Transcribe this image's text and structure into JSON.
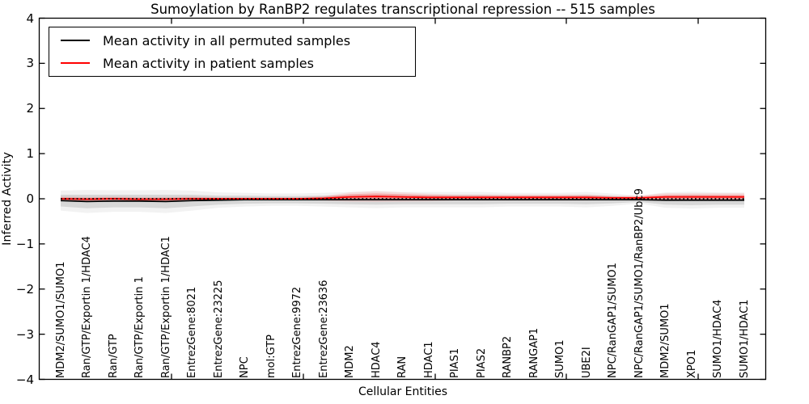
{
  "legend": {
    "entries": [
      {
        "label": "Mean activity in all permuted samples",
        "color": "#000000"
      },
      {
        "label": "Mean activity in patient samples",
        "color": "#ff0000"
      }
    ]
  },
  "chart_data": {
    "type": "line",
    "title": "Sumoylation by RanBP2 regulates transcriptional repression -- 515 samples",
    "xlabel": "Cellular Entities",
    "ylabel": "Inferred Activity",
    "ylim": [
      -4,
      4
    ],
    "y_ticks": [
      4,
      3,
      2,
      1,
      0,
      -1,
      -2,
      -3,
      -4
    ],
    "y_tick_labels": [
      "4",
      "3",
      "2",
      "1",
      "0",
      "−1",
      "−2",
      "−3",
      "−4"
    ],
    "grid": false,
    "legend_position": "upper left",
    "baseline": {
      "value": 0,
      "style": "dotted",
      "color": "#000000"
    },
    "categories": [
      "MDM2/SUMO1/SUMO1",
      "Ran/GTP/Exportin 1/HDAC4",
      "Ran/GTP",
      "Ran/GTP/Exportin 1",
      "Ran/GTP/Exportin 1/HDAC1",
      "EntrezGene:8021",
      "EntrezGene:23225",
      "NPC",
      "mol:GTP",
      "EntrezGene:9972",
      "EntrezGene:23636",
      "MDM2",
      "HDAC4",
      "RAN",
      "HDAC1",
      "PIAS1",
      "PIAS2",
      "RANBP2",
      "RANGAP1",
      "SUMO1",
      "UBE2I",
      "NPC/RanGAP1/SUMO1",
      "NPC/RanGAP1/SUMO1/RanBP2/Ubc9",
      "MDM2/SUMO1",
      "XPO1",
      "SUMO1/HDAC4",
      "SUMO1/HDAC1"
    ],
    "series": [
      {
        "name": "Mean activity in all permuted samples",
        "color": "#000000",
        "style": "solid",
        "values": [
          -0.04,
          -0.06,
          -0.05,
          -0.05,
          -0.06,
          -0.04,
          -0.03,
          -0.02,
          -0.02,
          -0.02,
          -0.02,
          -0.02,
          -0.02,
          -0.02,
          -0.02,
          -0.02,
          -0.02,
          -0.02,
          -0.02,
          -0.02,
          -0.02,
          -0.02,
          -0.02,
          -0.03,
          -0.03,
          -0.03,
          -0.03
        ]
      },
      {
        "name": "Mean activity in patient samples",
        "color": "#ff0000",
        "style": "solid",
        "values": [
          0,
          -0.01,
          0,
          -0.01,
          -0.01,
          0,
          0,
          0,
          0,
          0,
          0.01,
          0.04,
          0.05,
          0.04,
          0.03,
          0.03,
          0.03,
          0.03,
          0.03,
          0.03,
          0.03,
          0.02,
          0.02,
          0.04,
          0.04,
          0.04,
          0.04
        ]
      }
    ],
    "bands": [
      {
        "name": "permuted-samples-spread",
        "center_series": 0,
        "color": "#aaaaaa",
        "opacity": 0.38,
        "halfwidth": [
          0.13,
          0.15,
          0.14,
          0.14,
          0.15,
          0.13,
          0.1,
          0.09,
          0.08,
          0.08,
          0.09,
          0.1,
          0.11,
          0.1,
          0.1,
          0.1,
          0.1,
          0.09,
          0.09,
          0.09,
          0.1,
          0.08,
          0.05,
          0.1,
          0.11,
          0.1,
          0.1
        ]
      },
      {
        "name": "patient-samples-spread",
        "center_series": 1,
        "color": "#ff4444",
        "opacity": 0.3,
        "halfwidth": [
          0.03,
          0.03,
          0.03,
          0.03,
          0.03,
          0.03,
          0.02,
          0.02,
          0.02,
          0.02,
          0.03,
          0.06,
          0.07,
          0.06,
          0.05,
          0.04,
          0.04,
          0.04,
          0.04,
          0.04,
          0.04,
          0.03,
          0.03,
          0.05,
          0.05,
          0.05,
          0.05
        ]
      }
    ]
  }
}
